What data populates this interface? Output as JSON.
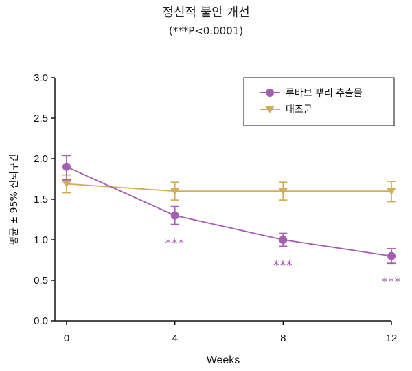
{
  "chart_data": {
    "type": "line",
    "title": "정신적 불안 개선",
    "subtitle": "(***P<0.0001)",
    "xlabel": "Weeks",
    "ylabel": "평균 ± 95% 신뢰구간",
    "x": [
      0,
      4,
      8,
      12
    ],
    "x_ticks": [
      "0",
      "4",
      "8",
      "12"
    ],
    "y_ticks": [
      "0.0",
      "0.5",
      "1.0",
      "1.5",
      "2.0",
      "2.5",
      "3.0"
    ],
    "ylim": [
      0,
      3
    ],
    "xlim": [
      0,
      12
    ],
    "grid": false,
    "legend_position": "top-right",
    "series": [
      {
        "name": "루바브 뿌리 추출물",
        "color": "#a45fb0",
        "marker": "circle",
        "values": [
          1.9,
          1.3,
          1.0,
          0.8
        ],
        "err_low": [
          1.74,
          1.19,
          0.92,
          0.71
        ],
        "err_high": [
          2.04,
          1.41,
          1.08,
          0.89
        ],
        "annotations": [
          "",
          "***",
          "***",
          "***"
        ]
      },
      {
        "name": "대조군",
        "color": "#d2ad5a",
        "marker": "triangle-down",
        "values": [
          1.69,
          1.6,
          1.6,
          1.6
        ],
        "err_low": [
          1.58,
          1.49,
          1.49,
          1.47
        ],
        "err_high": [
          1.8,
          1.71,
          1.71,
          1.72
        ],
        "annotations": [
          "",
          "",
          "",
          ""
        ]
      }
    ]
  }
}
